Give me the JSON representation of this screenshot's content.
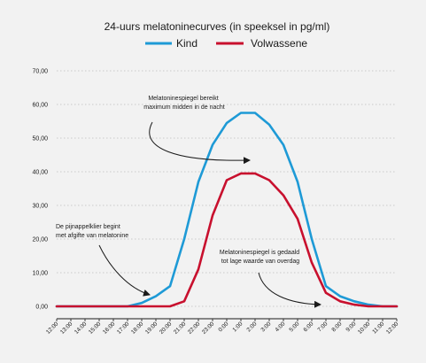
{
  "chart_data": {
    "type": "line",
    "title": "24-uurs melatoninecurves (in speeksel in pg/ml)",
    "xlabel": "",
    "ylabel": "",
    "ylim": [
      0,
      70
    ],
    "grid": true,
    "legend_position": "top-center",
    "y_ticks": [
      "0,00",
      "10,00",
      "20,00",
      "30,00",
      "40,00",
      "50,00",
      "60,00",
      "70,00"
    ],
    "x": [
      "12:00",
      "13:00",
      "14:00",
      "15:00",
      "16:00",
      "17:00",
      "18:00",
      "19:00",
      "20:00",
      "21:00",
      "22:00",
      "23:00",
      "0:00",
      "1:00",
      "2:00",
      "3:00",
      "4:00",
      "5:00",
      "6:00",
      "7:00",
      "8:00",
      "9:00",
      "10:00",
      "11:00",
      "12:00"
    ],
    "series": [
      {
        "name": "Kind",
        "color": "#1e9ad6",
        "values": [
          0,
          0,
          0,
          0,
          0,
          0,
          1,
          3,
          6,
          20,
          37,
          48,
          54.5,
          57.5,
          57.5,
          54,
          48,
          37,
          20,
          6,
          3,
          1.5,
          0.5,
          0,
          0
        ]
      },
      {
        "name": "Volwassene",
        "color": "#c8102e",
        "values": [
          0,
          0,
          0,
          0,
          0,
          0,
          0,
          0,
          0,
          1.5,
          11,
          27,
          37.5,
          39.5,
          39.5,
          37.5,
          33,
          26,
          13,
          4,
          1.5,
          0.5,
          0,
          0,
          0
        ]
      }
    ],
    "annotations": [
      {
        "lines": [
          "Melatoninespiegel bereikt",
          "maximum midden in de nacht"
        ]
      },
      {
        "lines": [
          "De pijnappelklier begint",
          "met afgifte van melatonine"
        ]
      },
      {
        "lines": [
          "Melatoninespiegel is gedaald",
          "tot lage waarde van overdag"
        ]
      }
    ]
  }
}
